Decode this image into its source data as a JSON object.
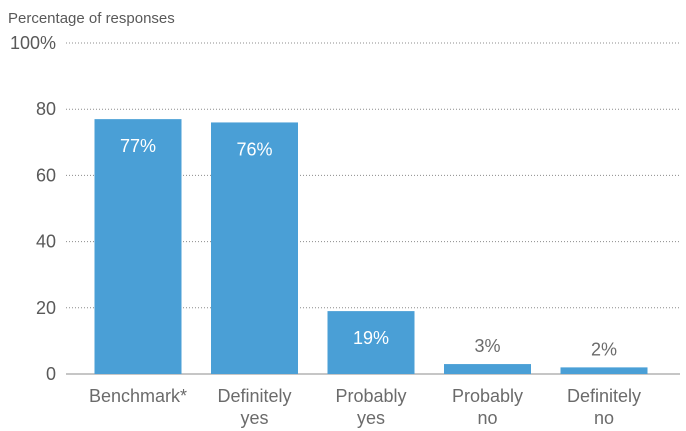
{
  "chart_data": {
    "type": "bar",
    "ylabel": "Percentage of responses",
    "categories": [
      [
        "Benchmark*"
      ],
      [
        "Definitely",
        "yes"
      ],
      [
        "Probably",
        "yes"
      ],
      [
        "Probably",
        "no"
      ],
      [
        "Definitely",
        "no"
      ]
    ],
    "values": [
      77,
      76,
      19,
      3,
      2
    ],
    "data_labels": [
      "77%",
      "76%",
      "19%",
      "3%",
      "2%"
    ],
    "yticks": [
      0,
      20,
      40,
      60,
      80,
      100
    ],
    "ytick_labels": [
      "0",
      "20",
      "40",
      "60",
      "80",
      "100%"
    ],
    "ylim": [
      0,
      100
    ],
    "grid": true,
    "bar_color": "#4a9fd6",
    "label_inside_color": "#ffffff",
    "label_outside_color": "#6b6b6b"
  }
}
